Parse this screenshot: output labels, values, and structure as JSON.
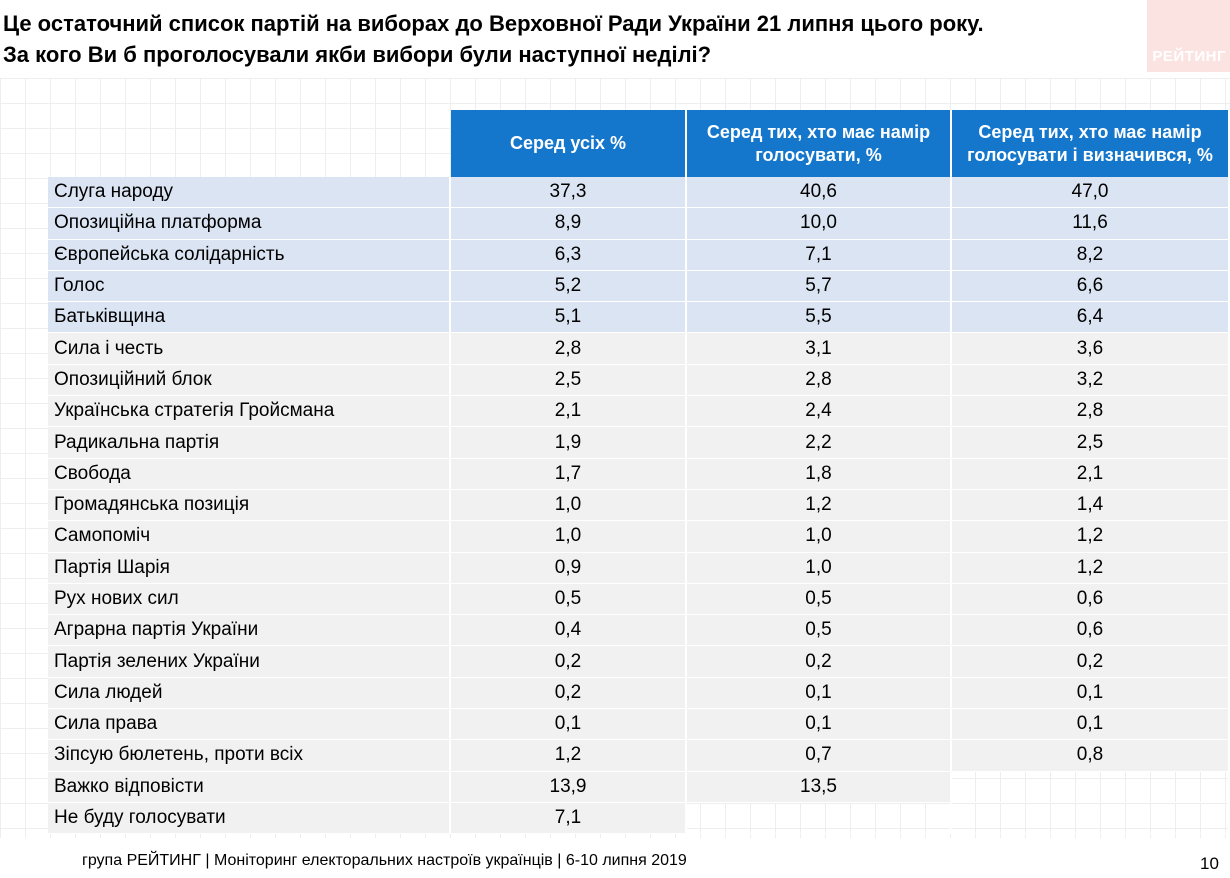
{
  "title": {
    "line1": "Це остаточний список партій на виборах до Верховної Ради України 21 липня цього року.",
    "line2": "За кого Ви б проголосували якби вибори були наступної неділі?"
  },
  "logo_text": "РЕЙТИНГ",
  "table": {
    "headers": [
      "Серед усіх %",
      "Серед тих, хто має намір голосувати, %",
      "Серед тих, хто має намір голосувати і визначився, %"
    ],
    "rows": [
      {
        "name": "Слуга народу",
        "values": [
          "37,3",
          "40,6",
          "47,0"
        ]
      },
      {
        "name": "Опозиційна платформа",
        "values": [
          "8,9",
          "10,0",
          "11,6"
        ]
      },
      {
        "name": "Європейська солідарність",
        "values": [
          "6,3",
          "7,1",
          "8,2"
        ]
      },
      {
        "name": "Голос",
        "values": [
          "5,2",
          "5,7",
          "6,6"
        ]
      },
      {
        "name": "Батьківщина",
        "values": [
          "5,1",
          "5,5",
          "6,4"
        ]
      },
      {
        "name": "Сила і честь",
        "values": [
          "2,8",
          "3,1",
          "3,6"
        ]
      },
      {
        "name": "Опозиційний блок",
        "values": [
          "2,5",
          "2,8",
          "3,2"
        ]
      },
      {
        "name": "Українська стратегія Гройсмана",
        "values": [
          "2,1",
          "2,4",
          "2,8"
        ]
      },
      {
        "name": "Радикальна партія",
        "values": [
          "1,9",
          "2,2",
          "2,5"
        ]
      },
      {
        "name": "Свобода",
        "values": [
          "1,7",
          "1,8",
          "2,1"
        ]
      },
      {
        "name": "Громадянська позиція",
        "values": [
          "1,0",
          "1,2",
          "1,4"
        ]
      },
      {
        "name": "Самопоміч",
        "values": [
          "1,0",
          "1,0",
          "1,2"
        ]
      },
      {
        "name": "Партія Шарія",
        "values": [
          "0,9",
          "1,0",
          "1,2"
        ]
      },
      {
        "name": "Рух нових сил",
        "values": [
          "0,5",
          "0,5",
          "0,6"
        ]
      },
      {
        "name": "Аграрна партія України",
        "values": [
          "0,4",
          "0,5",
          "0,6"
        ]
      },
      {
        "name": "Партія зелених України",
        "values": [
          "0,2",
          "0,2",
          "0,2"
        ]
      },
      {
        "name": "Сила людей",
        "values": [
          "0,2",
          "0,1",
          "0,1"
        ]
      },
      {
        "name": "Сила права",
        "values": [
          "0,1",
          "0,1",
          "0,1"
        ]
      },
      {
        "name": "Зіпсую бюлетень, проти всіх",
        "values": [
          "1,2",
          "0,7",
          "0,8"
        ]
      },
      {
        "name": "Важко відповісти",
        "values": [
          "13,9",
          "13,5"
        ]
      },
      {
        "name": "Не буду голосувати",
        "values": [
          "7,1"
        ]
      }
    ]
  },
  "footer": "група РЕЙТИНГ |  Моніторинг електоральних настроїв українців  |  6-10 липня 2019",
  "page_number": "10",
  "colors": {
    "header_bg": "#1577cc",
    "top_rows_bg": "#dbe4f2",
    "rows_bg": "#f1f1f1"
  }
}
